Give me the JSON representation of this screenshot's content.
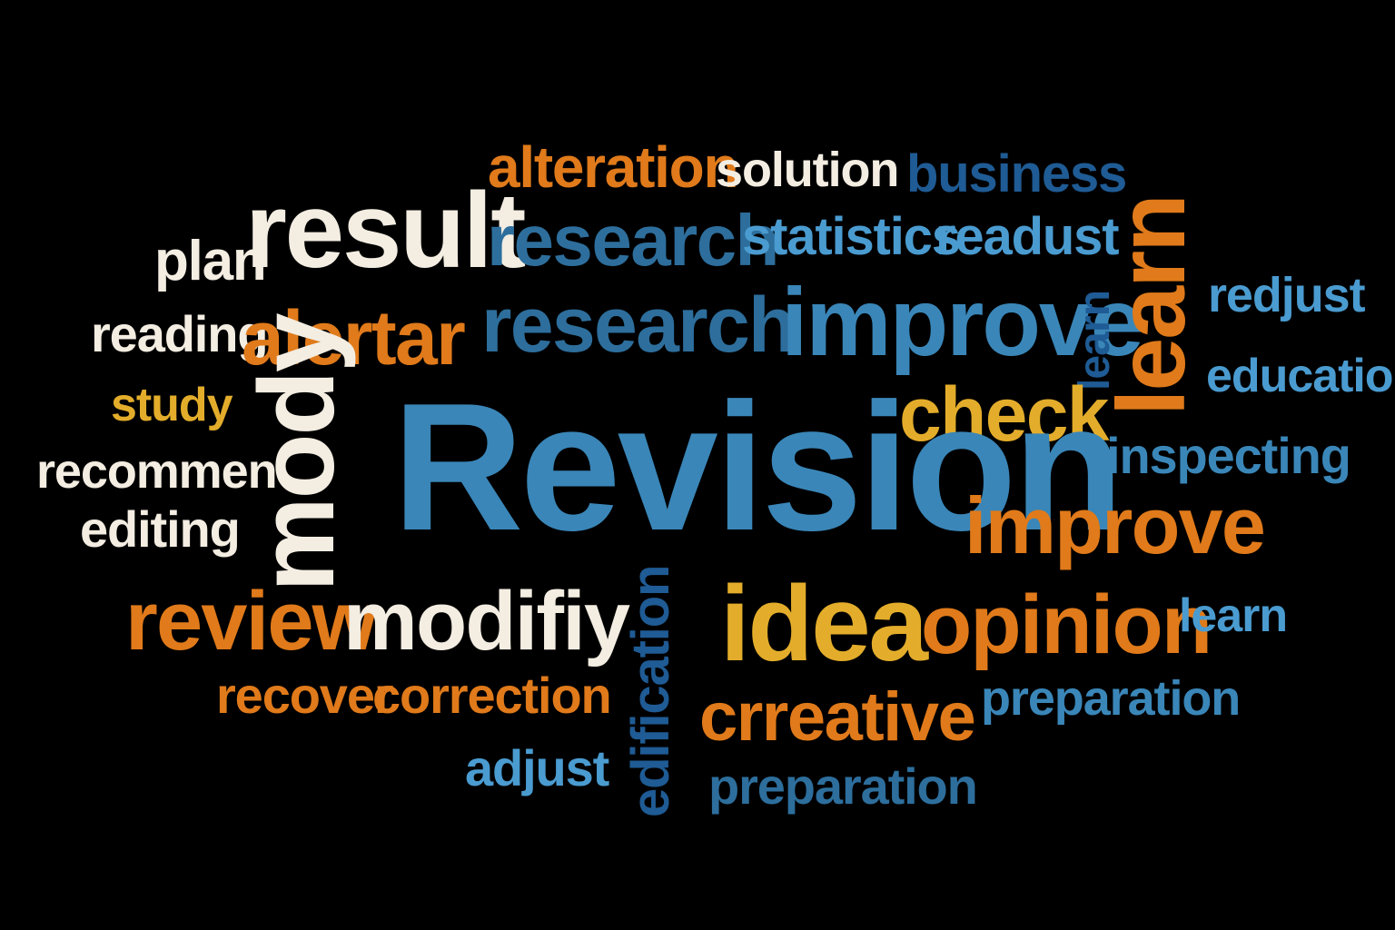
{
  "colors": {
    "background": "#000000",
    "cream": "#f3ede2",
    "orange": "#e07a1a",
    "gold": "#e3ad2b",
    "light_blue": "#4a9bd0",
    "mid_blue": "#3a86b8",
    "steel_blue": "#2d6e9c",
    "dark_blue": "#1f5b94"
  },
  "words": [
    {
      "text": "alteration",
      "color": "#e07a1a"
    },
    {
      "text": "solution",
      "color": "#f3ede2"
    },
    {
      "text": "business",
      "color": "#1f5b94"
    },
    {
      "text": "result",
      "color": "#f3ede2"
    },
    {
      "text": "research",
      "color": "#2d6e9c"
    },
    {
      "text": "statistics",
      "color": "#4a9bd0"
    },
    {
      "text": "readust",
      "color": "#4a9bd0"
    },
    {
      "text": "plan",
      "color": "#f3ede2"
    },
    {
      "text": "redjust",
      "color": "#4a9bd0"
    },
    {
      "text": "research",
      "color": "#2d6e9c"
    },
    {
      "text": "improve",
      "color": "#3a86b8"
    },
    {
      "text": "reading",
      "color": "#f3ede2"
    },
    {
      "text": "alertar",
      "color": "#e07a1a"
    },
    {
      "text": "learn",
      "color": "#1f5b94",
      "vertical": true
    },
    {
      "text": "learn",
      "color": "#e07a1a",
      "vertical": true
    },
    {
      "text": "education",
      "color": "#4a9bd0"
    },
    {
      "text": "study",
      "color": "#e3ad2b"
    },
    {
      "text": "check",
      "color": "#e3ad2b"
    },
    {
      "text": "Revision",
      "color": "#3a86b8"
    },
    {
      "text": "inspecting",
      "color": "#3a86b8"
    },
    {
      "text": "recommen",
      "color": "#f3ede2"
    },
    {
      "text": "mody",
      "color": "#f3ede2",
      "vertical": true
    },
    {
      "text": "editing",
      "color": "#f3ede2"
    },
    {
      "text": "improve",
      "color": "#e07a1a"
    },
    {
      "text": "review",
      "color": "#e07a1a"
    },
    {
      "text": "modifiy",
      "color": "#f3ede2"
    },
    {
      "text": "edification",
      "color": "#1f5b94",
      "vertical": true
    },
    {
      "text": "idea",
      "color": "#e3ad2b"
    },
    {
      "text": "opinion",
      "color": "#e07a1a"
    },
    {
      "text": "learn",
      "color": "#4a9bd0"
    },
    {
      "text": "recover",
      "color": "#e07a1a"
    },
    {
      "text": "correction",
      "color": "#e07a1a"
    },
    {
      "text": "crreative",
      "color": "#e07a1a"
    },
    {
      "text": "preparation",
      "color": "#3a86b8"
    },
    {
      "text": "adjust",
      "color": "#4a9bd0"
    },
    {
      "text": "preparation",
      "color": "#2d6e9c"
    }
  ]
}
